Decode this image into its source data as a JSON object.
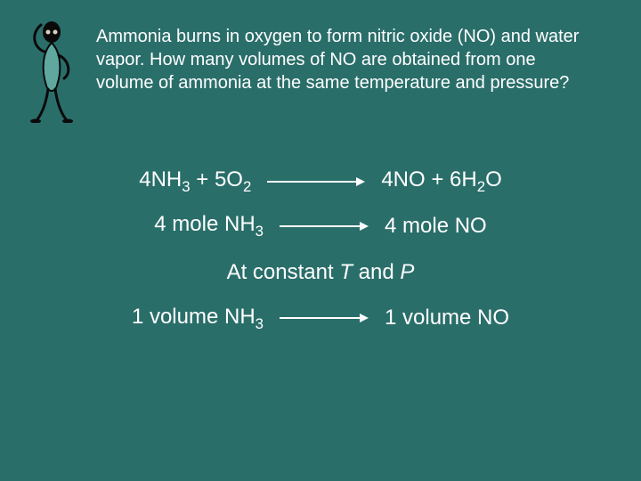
{
  "background_color": "#2a6e6a",
  "text_color": "#ffffff",
  "font_family": "Arial",
  "question": {
    "text": "Ammonia burns in oxygen to form nitric oxide (NO) and water vapor.  How many volumes of NO are obtained from one volume of ammonia at the same temperature and pressure?",
    "fontsize": 20
  },
  "equation": {
    "lhs_html": "4NH<sub>3</sub> + 5O<sub>2</sub>",
    "rhs_html": "4NO + 6H<sub>2</sub>O",
    "arrow_color": "#ffffff",
    "arrow_width": 110,
    "fontsize": 24
  },
  "mole_relation": {
    "lhs_html": "4 mole NH<sub>3</sub>",
    "rhs_html": "4 mole NO",
    "arrow_color": "#ffffff",
    "arrow_width": 100,
    "fontsize": 24
  },
  "condition": {
    "prefix": "At constant ",
    "var1": "T",
    "mid": " and ",
    "var2": "P",
    "fontsize": 24
  },
  "volume_relation": {
    "lhs_html": "1 volume NH<sub>3</sub>",
    "rhs_html": "1 volume NO",
    "arrow_color": "#ffffff",
    "arrow_width": 100,
    "fontsize": 24
  },
  "figure": {
    "stroke": "#0a0a0a",
    "fill_body": "#5fa89f",
    "highlight": "#d8d0c0"
  }
}
